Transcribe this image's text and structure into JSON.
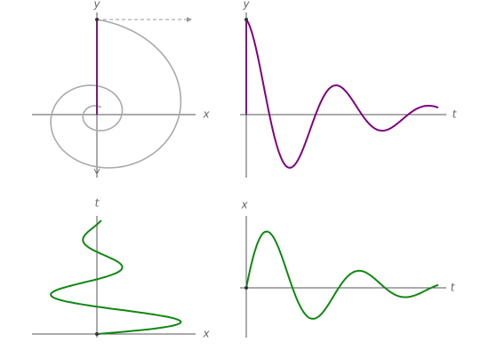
{
  "panels": [
    {
      "vertical_label": "y",
      "horizontal_label": "x"
    },
    {
      "vertical_label": "y",
      "horizontal_label": "t"
    },
    {
      "vertical_label": "t",
      "horizontal_label": "x"
    },
    {
      "vertical_label": "x",
      "horizontal_label": "t"
    }
  ]
}
